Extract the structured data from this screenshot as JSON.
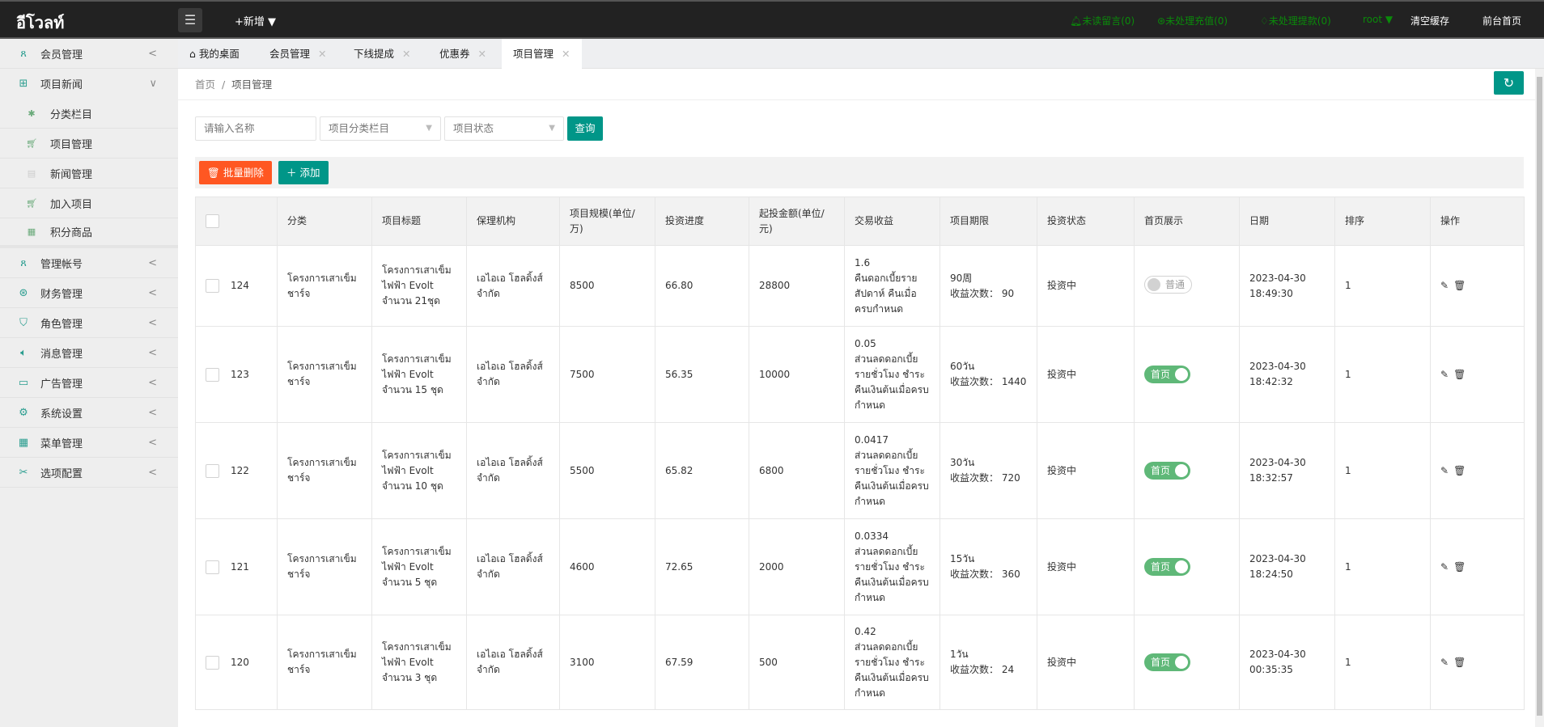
{
  "header": {
    "logo": "อีโวลท์",
    "new_label": "+新增 ▼",
    "unread": "未读留言(0)",
    "recharge": "未处理充值(0)",
    "withdraw": "未处理提款(0)",
    "user": "root ▼",
    "clear_cache": "清空缓存",
    "front_home": "前台首页"
  },
  "sidebar": {
    "items": [
      {
        "label": "会员管理",
        "icon": "user-icon",
        "arrow": "<"
      },
      {
        "label": "项目新闻",
        "icon": "book-icon",
        "arrow": "∨"
      },
      {
        "label": "管理帐号",
        "icon": "users-icon",
        "arrow": "<"
      },
      {
        "label": "财务管理",
        "icon": "yen-icon",
        "arrow": "<"
      },
      {
        "label": "角色管理",
        "icon": "shield-icon",
        "arrow": "<"
      },
      {
        "label": "消息管理",
        "icon": "speaker-icon",
        "arrow": "<"
      },
      {
        "label": "广告管理",
        "icon": "image-icon",
        "arrow": "<"
      },
      {
        "label": "系统设置",
        "icon": "gear-icon",
        "arrow": "<"
      },
      {
        "label": "菜单管理",
        "icon": "grid-icon",
        "arrow": "<"
      },
      {
        "label": "选项配置",
        "icon": "tools-icon",
        "arrow": "<"
      }
    ],
    "sub_items": [
      {
        "label": "分类栏目",
        "icon": "palm-icon"
      },
      {
        "label": "项目管理",
        "icon": "cart-icon"
      },
      {
        "label": "新闻管理",
        "icon": "doc-icon"
      },
      {
        "label": "加入项目",
        "icon": "cart-icon"
      },
      {
        "label": "积分商品",
        "icon": "grid-icon"
      }
    ]
  },
  "tabs": [
    {
      "label": "我的桌面"
    },
    {
      "label": "会员管理"
    },
    {
      "label": "下线提成"
    },
    {
      "label": "优惠券"
    },
    {
      "label": "项目管理",
      "active": true
    }
  ],
  "breadcrumb": {
    "home": "首页",
    "sep": "/",
    "current": "项目管理"
  },
  "filters": {
    "name_placeholder": "请输入名称",
    "category": "项目分类栏目",
    "status": "项目状态",
    "query": "查询"
  },
  "toolbar": {
    "batch_delete": "批量删除",
    "add": "添加"
  },
  "table": {
    "headers": [
      "分类",
      "项目标题",
      "保理机构",
      "项目规模(单位/万)",
      "投资进度",
      "起投金额(单位/元)",
      "交易收益",
      "项目期限",
      "投资状态",
      "首页展示",
      "日期",
      "排序",
      "操作"
    ],
    "rows": [
      {
        "id": "124",
        "category": "โครงการเสาเข็มชาร์จ",
        "title": "โครงการเสาเข็มไฟฟ้า Evolt จำนวน 21ชุด",
        "org": "เอไอเอ โฮลดิ้งส์ จำกัด",
        "scale": "8500",
        "progress": "66.80",
        "min": "28800",
        "yield_rate": "1.6",
        "yield_desc": "คืนดอกเบี้ยรายสัปดาห์ คืนเมื่อครบกำหนด",
        "term": "90周",
        "times": "收益次数： 90",
        "status": "投资中",
        "home_on": false,
        "home_label": "普通",
        "date": "2023-04-30 18:49:30",
        "sort": "1"
      },
      {
        "id": "123",
        "category": "โครงการเสาเข็มชาร์จ",
        "title": "โครงการเสาเข็มไฟฟ้า Evolt จำนวน 15 ชุด",
        "org": "เอไอเอ โฮลดิ้งส์ จำกัด",
        "scale": "7500",
        "progress": "56.35",
        "min": "10000",
        "yield_rate": "0.05",
        "yield_desc": "ส่วนลดดอกเบี้ยรายชั่วโมง ชำระคืนเงินต้นเมื่อครบกำหนด",
        "term": "60วัน",
        "times": "收益次数： 1440",
        "status": "投资中",
        "home_on": true,
        "home_label": "首页",
        "date": "2023-04-30 18:42:32",
        "sort": "1"
      },
      {
        "id": "122",
        "category": "โครงการเสาเข็มชาร์จ",
        "title": "โครงการเสาเข็มไฟฟ้า Evolt จำนวน 10 ชุด",
        "org": "เอไอเอ โฮลดิ้งส์ จำกัด",
        "scale": "5500",
        "progress": "65.82",
        "min": "6800",
        "yield_rate": "0.0417",
        "yield_desc": "ส่วนลดดอกเบี้ยรายชั่วโมง ชำระคืนเงินต้นเมื่อครบกำหนด",
        "term": "30วัน",
        "times": "收益次数： 720",
        "status": "投资中",
        "home_on": true,
        "home_label": "首页",
        "date": "2023-04-30 18:32:57",
        "sort": "1"
      },
      {
        "id": "121",
        "category": "โครงการเสาเข็มชาร์จ",
        "title": "โครงการเสาเข็มไฟฟ้า Evolt จำนวน 5 ชุด",
        "org": "เอไอเอ โฮลดิ้งส์ จำกัด",
        "scale": "4600",
        "progress": "72.65",
        "min": "2000",
        "yield_rate": "0.0334",
        "yield_desc": "ส่วนลดดอกเบี้ยรายชั่วโมง ชำระคืนเงินต้นเมื่อครบกำหนด",
        "term": "15วัน",
        "times": "收益次数： 360",
        "status": "投资中",
        "home_on": true,
        "home_label": "首页",
        "date": "2023-04-30 18:24:50",
        "sort": "1"
      },
      {
        "id": "120",
        "category": "โครงการเสาเข็มชาร์จ",
        "title": "โครงการเสาเข็มไฟฟ้า Evolt จำนวน 3 ชุด",
        "org": "เอไอเอ โฮลดิ้งส์ จำกัด",
        "scale": "3100",
        "progress": "67.59",
        "min": "500",
        "yield_rate": "0.42",
        "yield_desc": "ส่วนลดดอกเบี้ยรายชั่วโมง ชำระคืนเงินต้นเมื่อครบกำหนด",
        "term": "1วัน",
        "times": "收益次数： 24",
        "status": "投资中",
        "home_on": true,
        "home_label": "首页",
        "date": "2023-04-30 00:35:35",
        "sort": "1"
      }
    ]
  },
  "colors": {
    "accent": "#009688",
    "danger": "#ff5722",
    "toggle_on": "#5fb878",
    "topbar": "#222222"
  }
}
